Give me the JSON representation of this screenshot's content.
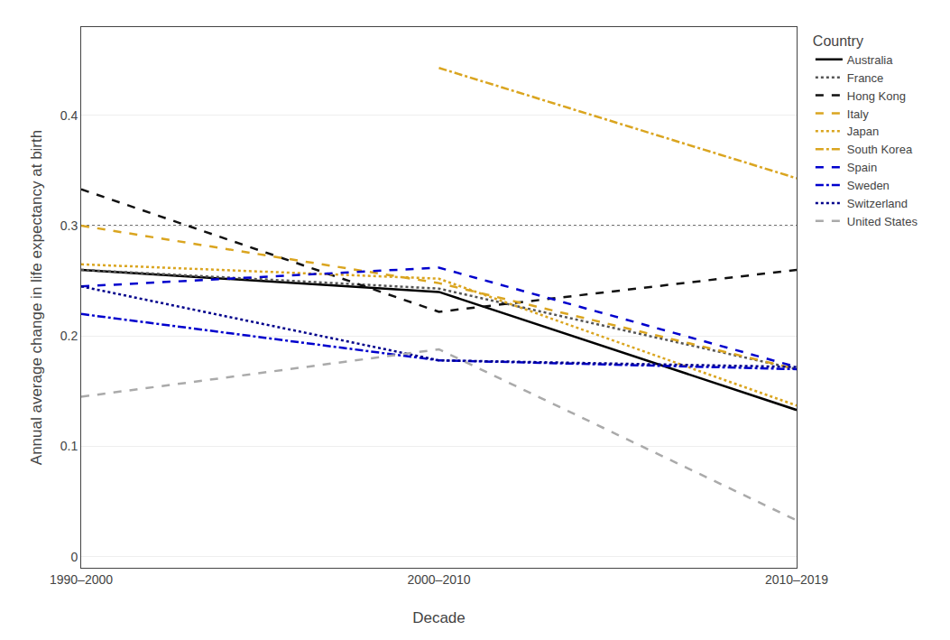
{
  "chart_data": {
    "type": "line",
    "x_label": "Decade",
    "y_label": "Annual average change in life expectancy at birth",
    "categories": [
      "1990–2000",
      "2000–2010",
      "2010–2019"
    ],
    "series": [
      {
        "name": "Australia",
        "color": "#000000",
        "line_style": "solid",
        "values": [
          0.26,
          0.24,
          0.133
        ]
      },
      {
        "name": "France",
        "color": "#555555",
        "line_style": "dotted",
        "values": [
          0.26,
          0.243,
          0.17
        ]
      },
      {
        "name": "Hong Kong",
        "color": "#111111",
        "line_style": "dashed",
        "values": [
          0.333,
          0.222,
          0.26
        ]
      },
      {
        "name": "Italy",
        "color": "#DAA520",
        "line_style": "dashed",
        "values": [
          0.3,
          0.248,
          0.17
        ]
      },
      {
        "name": "Japan",
        "color": "#DAA520",
        "line_style": "dotted",
        "values": [
          0.265,
          0.252,
          0.137
        ]
      },
      {
        "name": "South Korea",
        "color": "#DAA520",
        "line_style": "dashdot",
        "values": [
          null,
          0.443,
          0.343
        ]
      },
      {
        "name": "Spain",
        "color": "#0000CD",
        "line_style": "dashed",
        "values": [
          0.245,
          0.262,
          0.172
        ]
      },
      {
        "name": "Sweden",
        "color": "#0000CD",
        "line_style": "dashdot",
        "values": [
          0.22,
          0.178,
          0.17
        ]
      },
      {
        "name": "Switzerland",
        "color": "#00008B",
        "line_style": "dotted",
        "values": [
          0.245,
          0.178,
          0.172
        ]
      },
      {
        "name": "United States",
        "color": "#AAAAAA",
        "line_style": "dashed",
        "values": [
          0.145,
          0.188,
          0.033
        ]
      }
    ],
    "hline": {
      "value": 0.3,
      "color": "#444444",
      "line_style": "dotted"
    },
    "ylim": [
      -0.01,
      0.48
    ],
    "yticks": [
      0,
      0.1,
      0.2,
      0.3,
      0.4
    ],
    "grid": "y",
    "legend": "right",
    "legend_title": "Country"
  }
}
